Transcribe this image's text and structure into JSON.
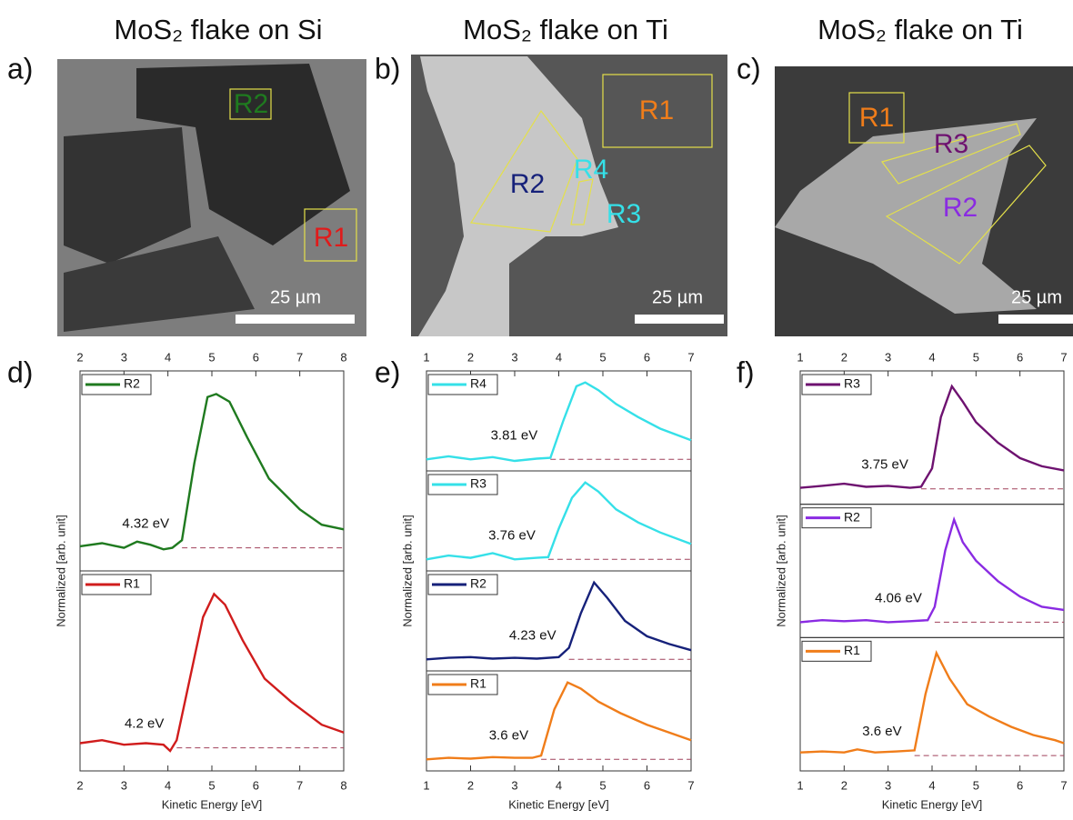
{
  "images": [
    {
      "label": "a)",
      "title": "MoS₂ flake on Si",
      "scale_bar": "25 µm",
      "regions": [
        {
          "name": "R2",
          "color": "#1f7a1f"
        },
        {
          "name": "R1",
          "color": "#e01b1b"
        }
      ]
    },
    {
      "label": "b)",
      "title": "MoS₂ flake on Ti",
      "scale_bar": "25 µm",
      "regions": [
        {
          "name": "R1",
          "color": "#f07d1a"
        },
        {
          "name": "R2",
          "color": "#16217a"
        },
        {
          "name": "R4",
          "color": "#35e0e8"
        },
        {
          "name": "R3",
          "color": "#35e0e8"
        }
      ]
    },
    {
      "label": "c)",
      "title": "MoS₂ flake on Ti",
      "scale_bar": "25 µm",
      "regions": [
        {
          "name": "R1",
          "color": "#f07d1a"
        },
        {
          "name": "R3",
          "color": "#6e1270"
        },
        {
          "name": "R2",
          "color": "#8a2be2"
        }
      ]
    }
  ],
  "chart_data": [
    {
      "type": "line",
      "panel_label": "d)",
      "xlabel": "Kinetic Energy [eV]",
      "ylabel": "Normalized [arb. unit]",
      "xlim": [
        2,
        8
      ],
      "xticks": [
        2,
        3,
        4,
        5,
        6,
        7,
        8
      ],
      "ylim": [
        -0.15,
        1.15
      ],
      "series": [
        {
          "name": "R2",
          "color": "#1f7a1f",
          "onset": 4.32,
          "onset_label": "4.32 eV",
          "baseline": 0,
          "x": [
            2,
            2.5,
            3,
            3.3,
            3.6,
            3.9,
            4.1,
            4.32,
            4.6,
            4.9,
            5.1,
            5.4,
            5.8,
            6.3,
            7,
            7.5,
            8
          ],
          "values": [
            0.01,
            0.03,
            0.0,
            0.04,
            0.02,
            -0.01,
            0.0,
            0.05,
            0.55,
            0.98,
            1.0,
            0.95,
            0.72,
            0.45,
            0.25,
            0.15,
            0.12
          ]
        },
        {
          "name": "R1",
          "color": "#d01c1c",
          "onset": 4.2,
          "onset_label": "4.2 eV",
          "baseline": 0,
          "x": [
            2,
            2.5,
            3,
            3.5,
            3.9,
            4.05,
            4.2,
            4.5,
            4.8,
            5.05,
            5.3,
            5.7,
            6.2,
            6.8,
            7.5,
            8
          ],
          "values": [
            0.03,
            0.05,
            0.02,
            0.03,
            0.02,
            -0.02,
            0.05,
            0.45,
            0.85,
            1.0,
            0.93,
            0.7,
            0.45,
            0.3,
            0.15,
            0.1
          ]
        }
      ]
    },
    {
      "type": "line",
      "panel_label": "e)",
      "xlabel": "Kinetic Energy [eV]",
      "ylabel": "Normalized [arb. unit]",
      "xlim": [
        1,
        7
      ],
      "xticks": [
        1,
        2,
        3,
        4,
        5,
        6,
        7
      ],
      "ylim": [
        -0.15,
        1.15
      ],
      "series": [
        {
          "name": "R4",
          "color": "#35e0e8",
          "onset": 3.81,
          "onset_label": "3.81 eV",
          "baseline": 0,
          "x": [
            1,
            1.5,
            2,
            2.5,
            3,
            3.5,
            3.81,
            4.1,
            4.4,
            4.6,
            4.9,
            5.3,
            5.8,
            6.3,
            7
          ],
          "values": [
            0.0,
            0.04,
            0.0,
            0.03,
            -0.02,
            0.01,
            0.02,
            0.5,
            0.95,
            1.0,
            0.9,
            0.72,
            0.55,
            0.4,
            0.25
          ]
        },
        {
          "name": "R3",
          "color": "#35e0e8",
          "onset": 3.76,
          "onset_label": "3.76 eV",
          "baseline": 0,
          "x": [
            1,
            1.5,
            2,
            2.5,
            3,
            3.5,
            3.76,
            4.0,
            4.3,
            4.6,
            4.9,
            5.3,
            5.8,
            6.3,
            7
          ],
          "values": [
            0.0,
            0.05,
            0.02,
            0.08,
            0.0,
            0.02,
            0.03,
            0.4,
            0.8,
            1.0,
            0.88,
            0.65,
            0.48,
            0.35,
            0.2
          ]
        },
        {
          "name": "R2",
          "color": "#16217a",
          "onset": 4.23,
          "onset_label": "4.23 eV",
          "baseline": 0,
          "x": [
            1,
            1.5,
            2,
            2.5,
            3,
            3.5,
            4.0,
            4.23,
            4.5,
            4.8,
            5.1,
            5.5,
            6,
            6.5,
            7
          ],
          "values": [
            0.0,
            0.02,
            0.03,
            0.01,
            0.02,
            0.01,
            0.03,
            0.15,
            0.6,
            1.0,
            0.8,
            0.5,
            0.3,
            0.2,
            0.12
          ]
        },
        {
          "name": "R1",
          "color": "#f07d1a",
          "onset": 3.6,
          "onset_label": "3.6 eV",
          "baseline": 0,
          "x": [
            1,
            1.5,
            2,
            2.5,
            3,
            3.4,
            3.6,
            3.9,
            4.2,
            4.5,
            4.9,
            5.4,
            6,
            6.5,
            7
          ],
          "values": [
            0.0,
            0.02,
            0.01,
            0.03,
            0.02,
            0.02,
            0.05,
            0.65,
            1.0,
            0.92,
            0.75,
            0.6,
            0.45,
            0.35,
            0.25
          ]
        }
      ]
    },
    {
      "type": "line",
      "panel_label": "f)",
      "xlabel": "Kinetic Energy [eV]",
      "ylabel": "Normalized [arb. unit]",
      "xlim": [
        1,
        7
      ],
      "xticks": [
        1,
        2,
        3,
        4,
        5,
        6,
        7
      ],
      "ylim": [
        -0.15,
        1.15
      ],
      "series": [
        {
          "name": "R3",
          "color": "#6e1270",
          "onset": 3.75,
          "onset_label": "3.75 eV",
          "baseline": 0,
          "x": [
            1,
            1.5,
            2,
            2.5,
            3,
            3.5,
            3.75,
            4.0,
            4.2,
            4.45,
            4.7,
            5.0,
            5.5,
            6,
            6.5,
            7
          ],
          "values": [
            0.01,
            0.03,
            0.05,
            0.02,
            0.03,
            0.01,
            0.02,
            0.2,
            0.7,
            1.0,
            0.85,
            0.65,
            0.45,
            0.3,
            0.22,
            0.18
          ]
        },
        {
          "name": "R2",
          "color": "#8a2be2",
          "onset": 4.06,
          "onset_label": "4.06 eV",
          "baseline": 0,
          "x": [
            1,
            1.5,
            2,
            2.5,
            3,
            3.5,
            3.9,
            4.06,
            4.3,
            4.5,
            4.7,
            5.0,
            5.5,
            6,
            6.5,
            7
          ],
          "values": [
            0.0,
            0.02,
            0.01,
            0.02,
            0.0,
            0.01,
            0.02,
            0.15,
            0.7,
            1.0,
            0.78,
            0.6,
            0.4,
            0.25,
            0.15,
            0.12
          ]
        },
        {
          "name": "R1",
          "color": "#f07d1a",
          "onset": 3.6,
          "onset_label": "3.6 eV",
          "baseline": 0,
          "x": [
            1,
            1.5,
            2,
            2.3,
            2.7,
            3.2,
            3.6,
            3.85,
            4.1,
            4.4,
            4.8,
            5.3,
            5.8,
            6.3,
            6.8,
            7
          ],
          "values": [
            0.03,
            0.04,
            0.03,
            0.06,
            0.03,
            0.04,
            0.05,
            0.6,
            1.0,
            0.75,
            0.5,
            0.38,
            0.28,
            0.2,
            0.15,
            0.12
          ]
        }
      ]
    }
  ]
}
